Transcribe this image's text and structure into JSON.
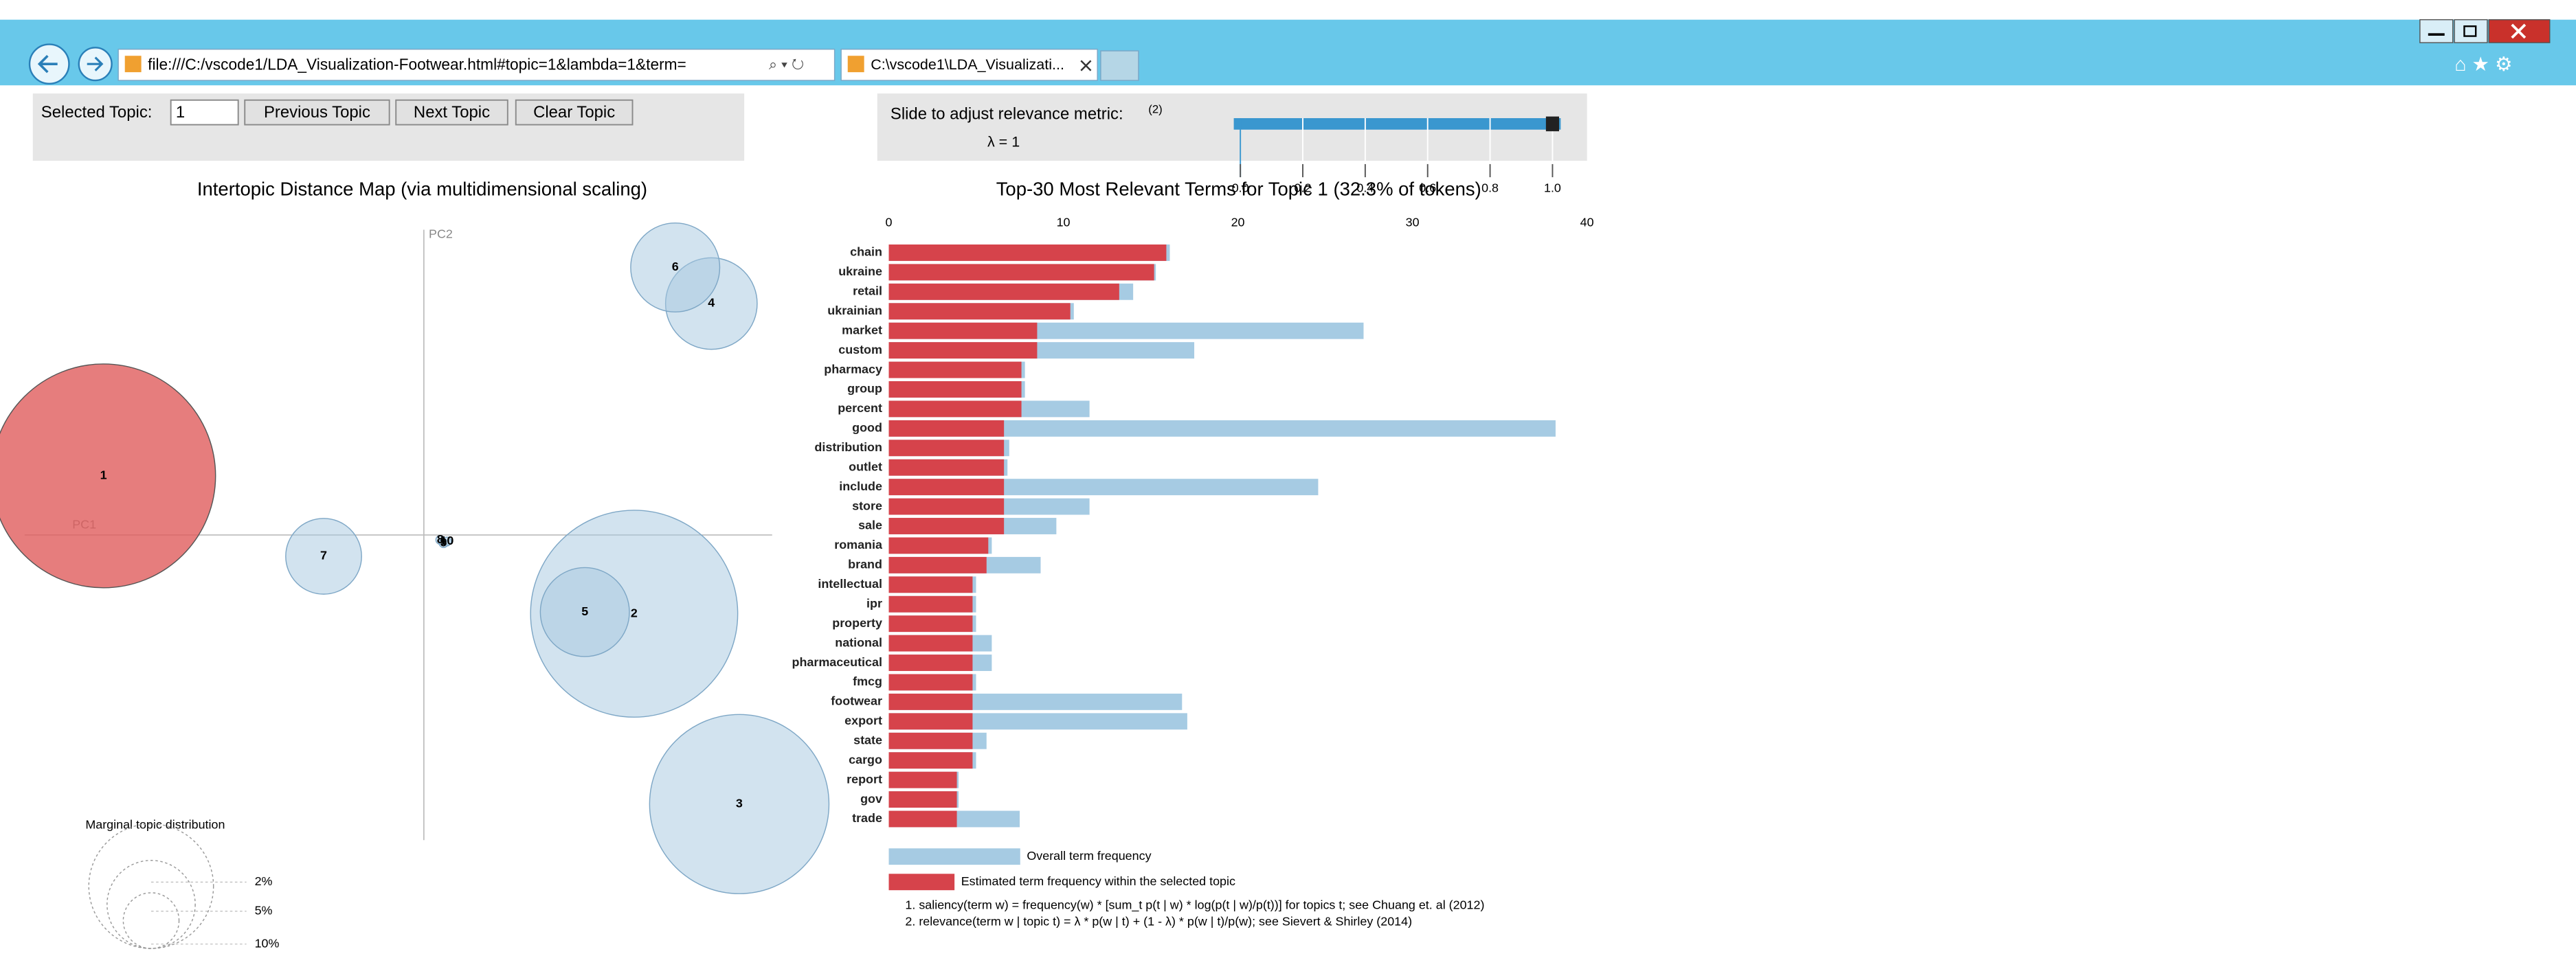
{
  "browser": {
    "url": "file:///C:/vscode1/LDA_Visualization-Footwear.html#topic=1&lambda=1&term=",
    "tab_title": "C:\\vscode1\\LDA_Visualizati..."
  },
  "controls": {
    "selected_topic_label": "Selected Topic:",
    "selected_topic": 1,
    "buttons": [
      "Previous Topic",
      "Next Topic",
      "Clear Topic"
    ],
    "slider": {
      "label": "Slide to adjust relevance metric:",
      "superscript": "(2)",
      "value_label": "λ = 1",
      "value": 1,
      "lim": [
        0,
        1
      ],
      "ticks": [
        {
          "value": 0,
          "label": "0.0"
        },
        {
          "value": 0.2,
          "label": "0.2"
        },
        {
          "value": 0.4,
          "label": "0.4"
        },
        {
          "value": 0.6,
          "label": "0.6"
        },
        {
          "value": 0.8,
          "label": "0.8"
        },
        {
          "value": 1,
          "label": "1.0"
        }
      ]
    }
  },
  "chart_data": [
    {
      "type": "bubble",
      "title": "Intertopic Distance Map (via multidimensional scaling)",
      "x_label": "PC1",
      "y_label": "PC2",
      "categories": [
        "1",
        "2",
        "3",
        "4",
        "5",
        "6",
        "7",
        "8",
        "9",
        "10"
      ],
      "x": [
        -0.195,
        0.128,
        0.192,
        0.175,
        0.098,
        0.153,
        -0.061,
        0.01,
        0.012,
        0.014
      ],
      "values": [
        0.036,
        -0.048,
        -0.164,
        0.141,
        -0.047,
        0.163,
        -0.013,
        -0.003,
        -0.005,
        -0.004
      ],
      "sizes": [
        32.3,
        27.6,
        20.7,
        5.4,
        5.1,
        5.1,
        3.7,
        0.05,
        0.05,
        0.05
      ],
      "xlim": [
        -0.243,
        0.212
      ],
      "ylim": [
        -0.186,
        0.186
      ],
      "color": "#a6c8e0",
      "selected_color": "#e05c5c",
      "size_legend": {
        "title": "Marginal topic distribution",
        "ticks": [
          {
            "value": 2,
            "label": "2%"
          },
          {
            "value": 5,
            "label": "5%"
          },
          {
            "value": 10,
            "label": "10%"
          }
        ]
      }
    },
    {
      "type": "bar",
      "orientation": "horizontal",
      "title": "Top-30 Most Relevant Terms for Topic 1 (32.3% of tokens)",
      "categories": [
        "chain",
        "ukraine",
        "retail",
        "ukrainian",
        "market",
        "custom",
        "pharmacy",
        "group",
        "percent",
        "good",
        "distribution",
        "outlet",
        "include",
        "store",
        "sale",
        "romania",
        "brand",
        "intellectual",
        "ipr",
        "property",
        "national",
        "pharmaceutical",
        "fmcg",
        "footwear",
        "export",
        "state",
        "cargo",
        "report",
        "gov",
        "trade"
      ],
      "series": [
        {
          "name": "Overall term frequency",
          "color": "#a6cbe3",
          "values": [
            16.1,
            15.3,
            14.0,
            10.6,
            27.2,
            17.5,
            7.8,
            7.8,
            11.5,
            38.2,
            6.9,
            6.8,
            24.6,
            11.5,
            9.6,
            5.9,
            8.7,
            5.0,
            5.0,
            5.0,
            5.9,
            5.9,
            5.0,
            16.8,
            17.1,
            5.6,
            5.0,
            4.0,
            4.0,
            7.5
          ]
        },
        {
          "name": "Estimated term frequency within the selected topic",
          "color": "#d6434b",
          "values": [
            15.9,
            15.2,
            13.2,
            10.4,
            8.5,
            8.5,
            7.6,
            7.6,
            7.6,
            6.6,
            6.6,
            6.6,
            6.6,
            6.6,
            6.6,
            5.7,
            5.6,
            4.8,
            4.8,
            4.8,
            4.8,
            4.8,
            4.8,
            4.8,
            4.8,
            4.8,
            4.8,
            3.9,
            3.9,
            3.9
          ]
        }
      ],
      "xlim": [
        0,
        40
      ],
      "xticks": [
        0,
        10,
        20,
        30,
        40
      ],
      "notes": [
        "1. saliency(term w) = frequency(w) * [sum_t p(t | w) * log(p(t | w)/p(t))] for topics t; see Chuang et. al (2012)",
        "2. relevance(term w | topic t) = λ * p(w | t) + (1 - λ) * p(w | t)/p(w); see Sievert & Shirley (2014)"
      ]
    }
  ]
}
